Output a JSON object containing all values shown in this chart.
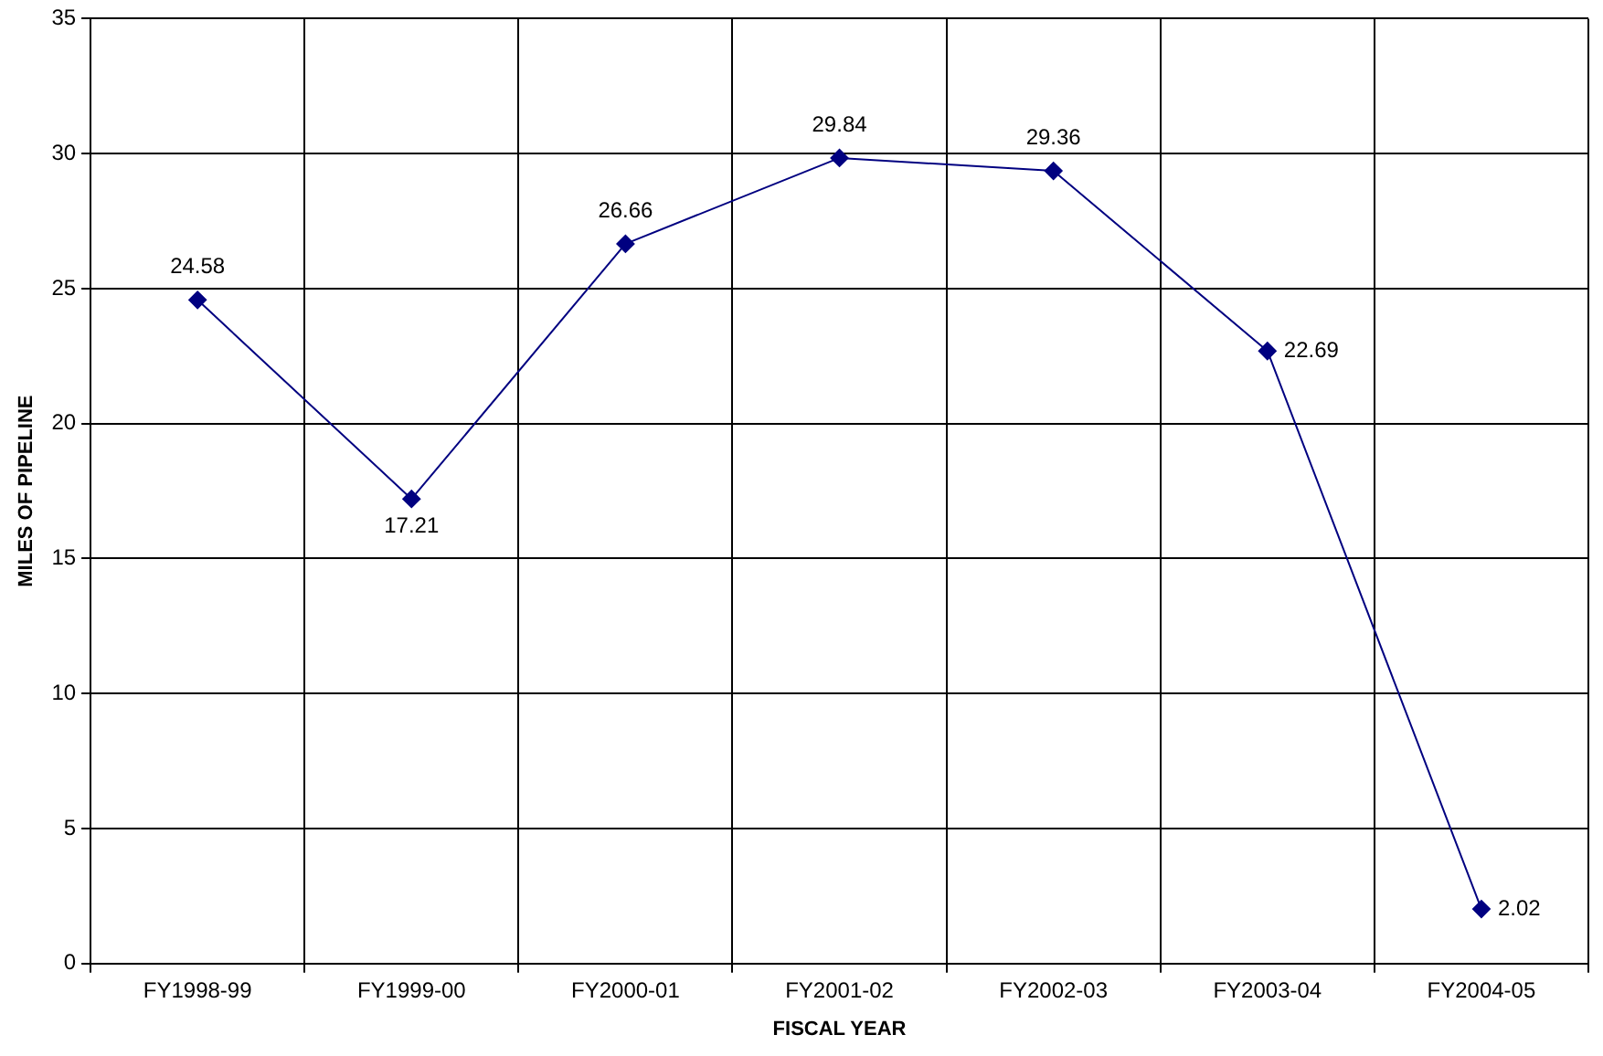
{
  "chart_data": {
    "type": "line",
    "xlabel": "FISCAL YEAR",
    "ylabel": "MILES OF PIPELINE",
    "categories": [
      "FY1998-99",
      "FY1999-00",
      "FY2000-01",
      "FY2001-02",
      "FY2002-03",
      "FY2003-04",
      "FY2004-05"
    ],
    "series": [
      {
        "color": "#000080",
        "values": [
          24.58,
          17.21,
          26.66,
          29.84,
          29.36,
          22.69,
          2.02
        ]
      }
    ],
    "ylim": [
      0,
      35
    ],
    "yticks": [
      0,
      5,
      10,
      15,
      20,
      25,
      30,
      35
    ],
    "grid": true,
    "legend": false,
    "marker": "diamond",
    "line_style": "solid",
    "data_labels": true
  }
}
